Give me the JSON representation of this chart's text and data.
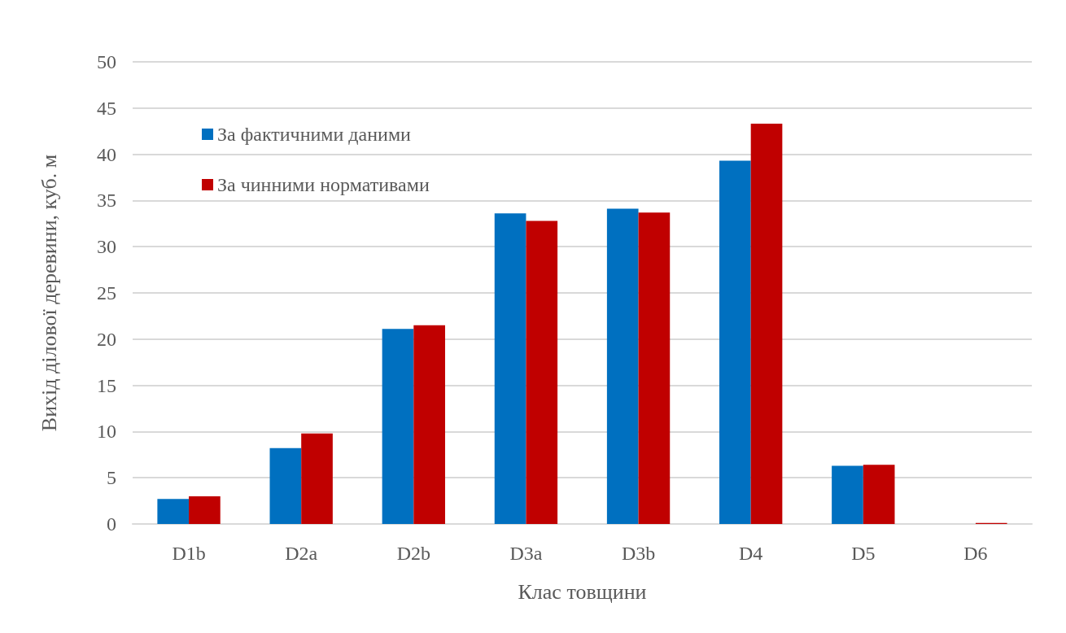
{
  "chart_data": {
    "type": "bar",
    "xlabel": "Клас товщини",
    "ylabel": "Вихід ділової деревини, куб. м",
    "categories": [
      "D1b",
      "D2a",
      "D2b",
      "D3a",
      "D3b",
      "D4",
      "D5",
      "D6"
    ],
    "series": [
      {
        "name": "За фактичними даними",
        "color": "#0070c0",
        "values": [
          2.7,
          8.2,
          21.1,
          33.6,
          34.1,
          39.3,
          6.3,
          0
        ]
      },
      {
        "name": "За чинними нормативами",
        "color": "#c00000",
        "values": [
          3.0,
          9.8,
          21.5,
          32.8,
          33.7,
          43.3,
          6.4,
          0.1
        ]
      }
    ],
    "ylim": [
      0,
      50
    ],
    "yticks": [
      0,
      5,
      10,
      15,
      20,
      25,
      30,
      35,
      40,
      45,
      50
    ],
    "grid": "y",
    "legend": "top left"
  }
}
